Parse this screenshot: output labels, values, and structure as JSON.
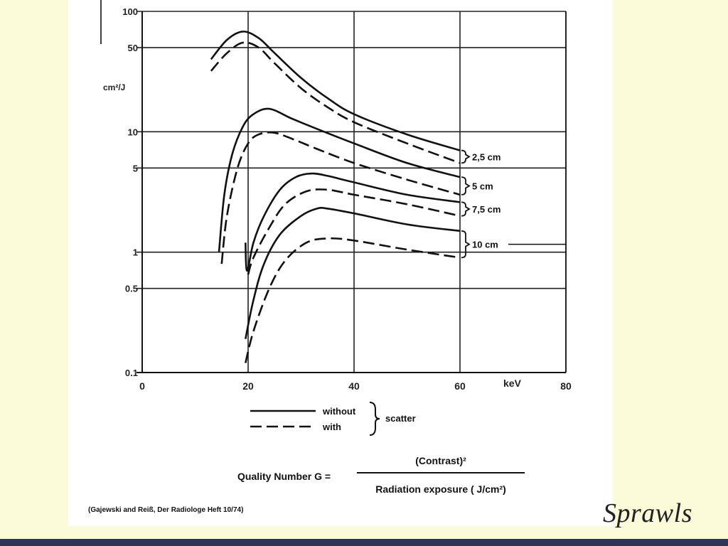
{
  "brand": "Sprawls",
  "credit": "(Gajewski and Reiß, Der Radiologe Heft 10/74)",
  "formula": {
    "lhs": "Quality Number G =",
    "numerator": "(Contrast)²",
    "denominator": "Radiation exposure ( J/cm²)"
  },
  "legend": {
    "without": "without",
    "with": "with",
    "scatter": "scatter"
  },
  "chart_data": {
    "type": "line",
    "y_scale": "log",
    "xlim": [
      0,
      80
    ],
    "ylim": [
      0.1,
      100
    ],
    "x_ticks": [
      "0",
      "20",
      "40",
      "60",
      "80"
    ],
    "x_unit_label": "keV",
    "y_ticks": [
      "100",
      "50",
      "10",
      "5",
      "1",
      "0.5",
      "0.1"
    ],
    "ylabel": "cm²/J",
    "grid": true,
    "thickness_labels": [
      "2,5 cm",
      "5 cm",
      "7,5 cm",
      "10 cm"
    ],
    "series": [
      {
        "group": "2,5 cm",
        "scatter": "without",
        "style": "solid",
        "x": [
          13,
          16,
          19,
          22,
          25,
          30,
          35,
          40,
          50,
          60
        ],
        "y": [
          40,
          58,
          68,
          60,
          45,
          28,
          19,
          14,
          9.5,
          7
        ]
      },
      {
        "group": "2,5 cm",
        "scatter": "with",
        "style": "dashed",
        "x": [
          13,
          16,
          19,
          22,
          25,
          30,
          35,
          40,
          50,
          60
        ],
        "y": [
          32,
          45,
          55,
          50,
          37,
          23,
          16,
          12,
          8,
          5.5
        ]
      },
      {
        "group": "5 cm",
        "scatter": "without",
        "style": "solid",
        "x": [
          14.5,
          15.5,
          17,
          19,
          21,
          24,
          28,
          32,
          40,
          50,
          60
        ],
        "y": [
          1,
          3,
          6.5,
          11,
          14,
          15.5,
          13,
          11,
          8,
          5.5,
          4.2
        ]
      },
      {
        "group": "5 cm",
        "scatter": "with",
        "style": "dashed",
        "x": [
          15,
          16,
          18,
          20,
          22,
          25,
          29,
          33,
          40,
          50,
          60
        ],
        "y": [
          0.8,
          2,
          5,
          8,
          9.5,
          9.8,
          8.5,
          7.2,
          5.5,
          4,
          3
        ]
      },
      {
        "group": "7,5 cm",
        "scatter": "without",
        "style": "solid",
        "x": [
          19.5,
          19.8,
          21,
          23,
          26,
          29,
          32,
          35,
          40,
          50,
          60
        ],
        "y": [
          1.2,
          0.7,
          1.2,
          2,
          3.3,
          4.2,
          4.5,
          4.3,
          3.8,
          3,
          2.6
        ]
      },
      {
        "group": "7,5 cm",
        "scatter": "with",
        "style": "dashed",
        "x": [
          20,
          21,
          24,
          27,
          31,
          35,
          40,
          50,
          60
        ],
        "y": [
          0.65,
          0.9,
          1.6,
          2.5,
          3.2,
          3.3,
          3,
          2.5,
          2
        ]
      },
      {
        "group": "10 cm",
        "scatter": "without",
        "style": "solid",
        "x": [
          19.5,
          21,
          23,
          26,
          30,
          33,
          35,
          40,
          50,
          60
        ],
        "y": [
          0.19,
          0.4,
          0.8,
          1.4,
          2,
          2.3,
          2.3,
          2.1,
          1.7,
          1.5
        ]
      },
      {
        "group": "10 cm",
        "scatter": "with",
        "style": "dashed",
        "x": [
          19.5,
          21,
          24,
          27,
          31,
          35,
          40,
          50,
          60
        ],
        "y": [
          0.12,
          0.22,
          0.5,
          0.85,
          1.2,
          1.3,
          1.25,
          1.05,
          0.9
        ]
      }
    ]
  }
}
